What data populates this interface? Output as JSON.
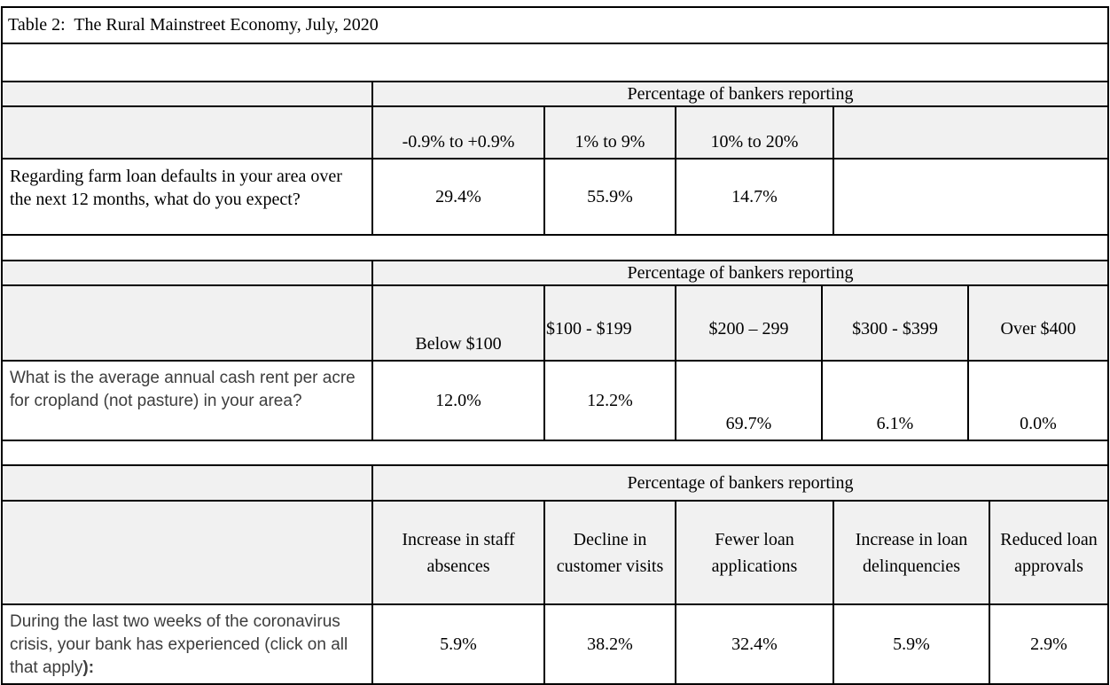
{
  "title": "Table 2:  The Rural Mainstreet Economy, July, 2020",
  "colors": {
    "shading": "#f1f1f1",
    "border": "#000000",
    "question_text": "#3d3d3d"
  },
  "tables": [
    {
      "header": "Percentage of bankers reporting",
      "columns": [
        "-0.9% to +0.9%",
        "1% to 9%",
        "10% to 20%",
        ""
      ],
      "question": "Regarding farm loan defaults in your area over the next 12 months, what do you expect?",
      "values": [
        "29.4%",
        "55.9%",
        "14.7%",
        ""
      ]
    },
    {
      "header": "Percentage of bankers reporting",
      "columns": [
        "Below $100",
        "$100 - $199",
        "$200 – 299",
        "$300 - $399",
        "Over $400"
      ],
      "question": "What is the average annual cash rent per acre for cropland (not pasture) in your area?",
      "values": [
        "12.0%",
        "12.2%",
        "69.7%",
        "6.1%",
        "0.0%"
      ]
    },
    {
      "header": "Percentage of bankers reporting",
      "columns": [
        "Increase in staff absences",
        "Decline in customer visits",
        "Fewer loan applications",
        "Increase in loan delinquencies",
        "Reduced loan approvals"
      ],
      "question_main": "During the last two weeks of the coronavirus crisis, your bank has experienced (click on all that apply",
      "question_suffix": "):",
      "values": [
        "5.9%",
        "38.2%",
        "32.4%",
        "5.9%",
        "2.9%"
      ]
    }
  ]
}
